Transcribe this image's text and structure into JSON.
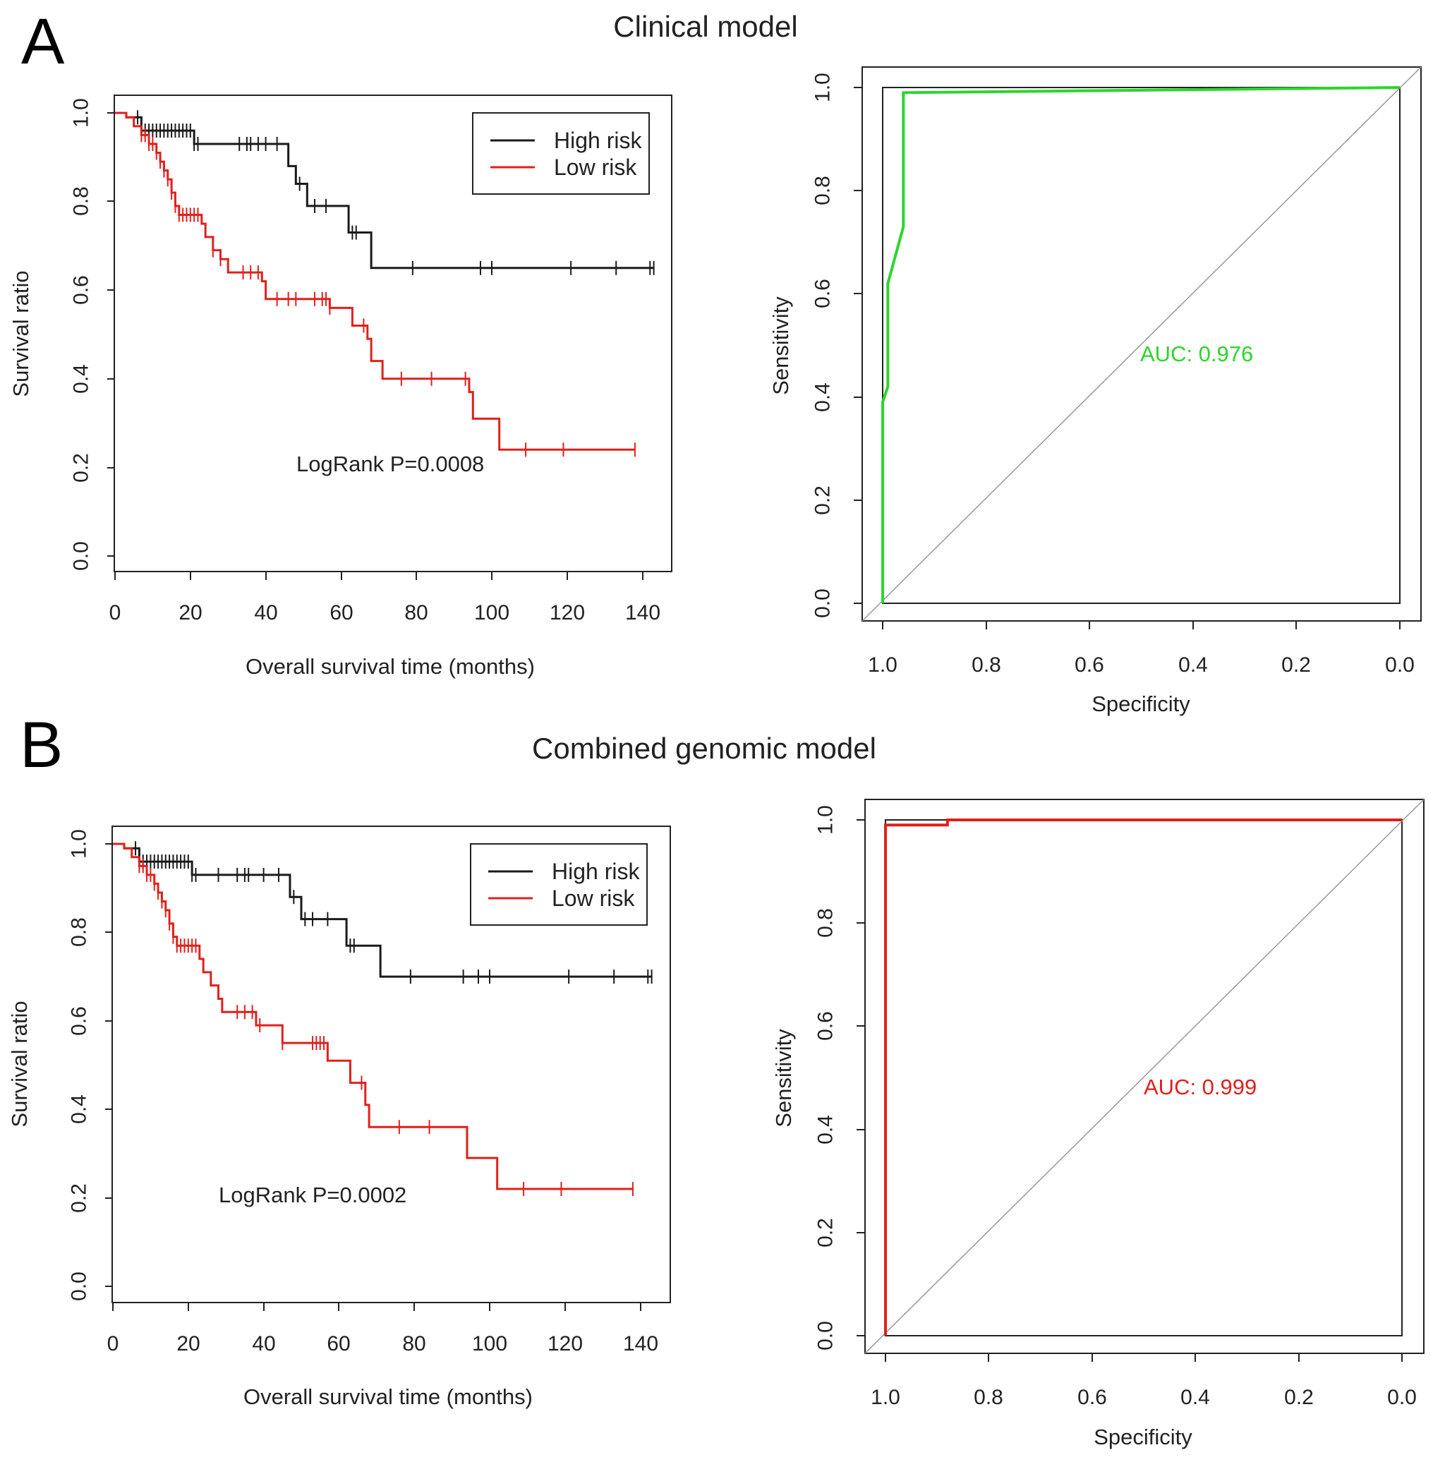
{
  "panels": [
    {
      "letter": "A",
      "title": "Clinical model",
      "km": {
        "ylabel": "Survival ratio",
        "xlabel": "Overall survival time (months)",
        "xticks": [
          "0",
          "20",
          "40",
          "60",
          "80",
          "100",
          "120",
          "140"
        ],
        "yticks": [
          "0.0",
          "0.2",
          "0.4",
          "0.6",
          "0.8",
          "1.0"
        ],
        "legend": [
          {
            "label": "High risk",
            "color": "#1a1a1a"
          },
          {
            "label": "Low risk",
            "color": "#e0201b"
          }
        ],
        "annotation": "LogRank  P=0.0008"
      },
      "roc": {
        "ylabel": "Sensitivity",
        "xlabel": "Specificity",
        "xticks": [
          "1.0",
          "0.8",
          "0.6",
          "0.4",
          "0.2",
          "0.0"
        ],
        "yticks": [
          "0.0",
          "0.2",
          "0.4",
          "0.6",
          "0.8",
          "1.0"
        ],
        "auc_label": "AUC: 0.976",
        "color": "#2bd62b"
      }
    },
    {
      "letter": "B",
      "title": "Combined genomic model",
      "km": {
        "ylabel": "Survival ratio",
        "xlabel": "Overall survival time (months)",
        "xticks": [
          "0",
          "20",
          "40",
          "60",
          "80",
          "100",
          "120",
          "140"
        ],
        "yticks": [
          "0.0",
          "0.2",
          "0.4",
          "0.6",
          "0.8",
          "1.0"
        ],
        "legend": [
          {
            "label": "High risk",
            "color": "#1a1a1a"
          },
          {
            "label": "Low risk",
            "color": "#e0201b"
          }
        ],
        "annotation": "LogRank  P=0.0002"
      },
      "roc": {
        "ylabel": "Sensitivity",
        "xlabel": "Specificity",
        "xticks": [
          "1.0",
          "0.8",
          "0.6",
          "0.4",
          "0.2",
          "0.0"
        ],
        "yticks": [
          "0.0",
          "0.2",
          "0.4",
          "0.6",
          "0.8",
          "1.0"
        ],
        "auc_label": "AUC: 0.999",
        "color": "#e0201b"
      }
    }
  ],
  "chart_data": [
    {
      "type": "line",
      "subtype": "kaplan-meier",
      "title": "Clinical model",
      "xlabel": "Overall survival time (months)",
      "ylabel": "Survival ratio",
      "xlim": [
        0,
        145
      ],
      "ylim": [
        0,
        1.0
      ],
      "series": [
        {
          "name": "High risk",
          "color": "#1a1a1a",
          "steps": [
            [
              0,
              1.0
            ],
            [
              3,
              0.99
            ],
            [
              7,
              0.96
            ],
            [
              21,
              0.93
            ],
            [
              46,
              0.88
            ],
            [
              48,
              0.84
            ],
            [
              51,
              0.79
            ],
            [
              62,
              0.73
            ],
            [
              68,
              0.65
            ],
            [
              143,
              0.65
            ]
          ],
          "censors": [
            6,
            8,
            9,
            10,
            11,
            12,
            13,
            14,
            15,
            16,
            17,
            18,
            19,
            20,
            21,
            22,
            33,
            35,
            36,
            38,
            40,
            43,
            49,
            53,
            56,
            63,
            64,
            79,
            97,
            100,
            121,
            133,
            142,
            143
          ]
        },
        {
          "name": "Low risk",
          "color": "#e0201b",
          "steps": [
            [
              0,
              1.0
            ],
            [
              3,
              0.99
            ],
            [
              5,
              0.97
            ],
            [
              7,
              0.95
            ],
            [
              9,
              0.93
            ],
            [
              11,
              0.91
            ],
            [
              12,
              0.89
            ],
            [
              13,
              0.87
            ],
            [
              14,
              0.85
            ],
            [
              15,
              0.82
            ],
            [
              16,
              0.79
            ],
            [
              17,
              0.77
            ],
            [
              23,
              0.75
            ],
            [
              24,
              0.72
            ],
            [
              26,
              0.69
            ],
            [
              28,
              0.67
            ],
            [
              30,
              0.64
            ],
            [
              39,
              0.62
            ],
            [
              40,
              0.58
            ],
            [
              57,
              0.56
            ],
            [
              63,
              0.52
            ],
            [
              67,
              0.49
            ],
            [
              68,
              0.44
            ],
            [
              71,
              0.4
            ],
            [
              94,
              0.37
            ],
            [
              95,
              0.31
            ],
            [
              102,
              0.24
            ],
            [
              138,
              0.24
            ]
          ],
          "censors": [
            7,
            8,
            9,
            10,
            11,
            12,
            13,
            14,
            15,
            16,
            17,
            18,
            19,
            20,
            21,
            22,
            26,
            28,
            34,
            36,
            38,
            43,
            46,
            48,
            53,
            55,
            56,
            57,
            66,
            76,
            84,
            93,
            109,
            119,
            138
          ]
        }
      ],
      "annotation": "LogRank  P=0.0008"
    },
    {
      "type": "line",
      "subtype": "roc",
      "title": "Clinical model",
      "xlabel": "Specificity",
      "ylabel": "Sensitivity",
      "xlim": [
        1.0,
        0.0
      ],
      "ylim": [
        0,
        1.0
      ],
      "series": [
        {
          "name": "ROC",
          "color": "#2bd62b",
          "points": [
            [
              1.0,
              0.0
            ],
            [
              1.0,
              0.39
            ],
            [
              0.99,
              0.42
            ],
            [
              0.99,
              0.62
            ],
            [
              0.96,
              0.73
            ],
            [
              0.96,
              0.99
            ],
            [
              0.0,
              1.0
            ]
          ]
        }
      ],
      "auc": 0.976
    },
    {
      "type": "line",
      "subtype": "kaplan-meier",
      "title": "Combined genomic model",
      "xlabel": "Overall survival time (months)",
      "ylabel": "Survival ratio",
      "xlim": [
        0,
        145
      ],
      "ylim": [
        0,
        1.0
      ],
      "series": [
        {
          "name": "High risk",
          "color": "#1a1a1a",
          "steps": [
            [
              0,
              1.0
            ],
            [
              3,
              0.99
            ],
            [
              7,
              0.96
            ],
            [
              21,
              0.93
            ],
            [
              47,
              0.88
            ],
            [
              50,
              0.83
            ],
            [
              62,
              0.77
            ],
            [
              71,
              0.7
            ],
            [
              143,
              0.7
            ]
          ],
          "censors": [
            6,
            8,
            9,
            10,
            11,
            12,
            13,
            14,
            15,
            16,
            17,
            18,
            19,
            20,
            21,
            22,
            28,
            33,
            35,
            36,
            40,
            44,
            48,
            51,
            53,
            57,
            63,
            64,
            79,
            93,
            97,
            100,
            121,
            133,
            142,
            143
          ]
        },
        {
          "name": "Low risk",
          "color": "#e0201b",
          "steps": [
            [
              0,
              1.0
            ],
            [
              3,
              0.99
            ],
            [
              5,
              0.97
            ],
            [
              7,
              0.95
            ],
            [
              9,
              0.93
            ],
            [
              11,
              0.91
            ],
            [
              12,
              0.89
            ],
            [
              13,
              0.87
            ],
            [
              14,
              0.85
            ],
            [
              15,
              0.82
            ],
            [
              16,
              0.79
            ],
            [
              17,
              0.77
            ],
            [
              23,
              0.74
            ],
            [
              24,
              0.71
            ],
            [
              26,
              0.68
            ],
            [
              28,
              0.65
            ],
            [
              29,
              0.62
            ],
            [
              38,
              0.59
            ],
            [
              45,
              0.55
            ],
            [
              57,
              0.51
            ],
            [
              63,
              0.46
            ],
            [
              67,
              0.41
            ],
            [
              68,
              0.36
            ],
            [
              94,
              0.29
            ],
            [
              102,
              0.22
            ],
            [
              138,
              0.22
            ]
          ],
          "censors": [
            7,
            8,
            9,
            10,
            11,
            12,
            13,
            14,
            15,
            16,
            17,
            18,
            19,
            20,
            21,
            22,
            33,
            35,
            37,
            39,
            45,
            53,
            54,
            55,
            56,
            66,
            76,
            84,
            109,
            119,
            138
          ]
        }
      ],
      "annotation": "LogRank  P=0.0002"
    },
    {
      "type": "line",
      "subtype": "roc",
      "title": "Combined genomic model",
      "xlabel": "Specificity",
      "ylabel": "Sensitivity",
      "xlim": [
        1.0,
        0.0
      ],
      "ylim": [
        0,
        1.0
      ],
      "series": [
        {
          "name": "ROC",
          "color": "#e0201b",
          "points": [
            [
              1.0,
              0.0
            ],
            [
              1.0,
              0.99
            ],
            [
              0.88,
              0.99
            ],
            [
              0.88,
              1.0
            ],
            [
              0.0,
              1.0
            ]
          ]
        }
      ],
      "auc": 0.999
    }
  ]
}
